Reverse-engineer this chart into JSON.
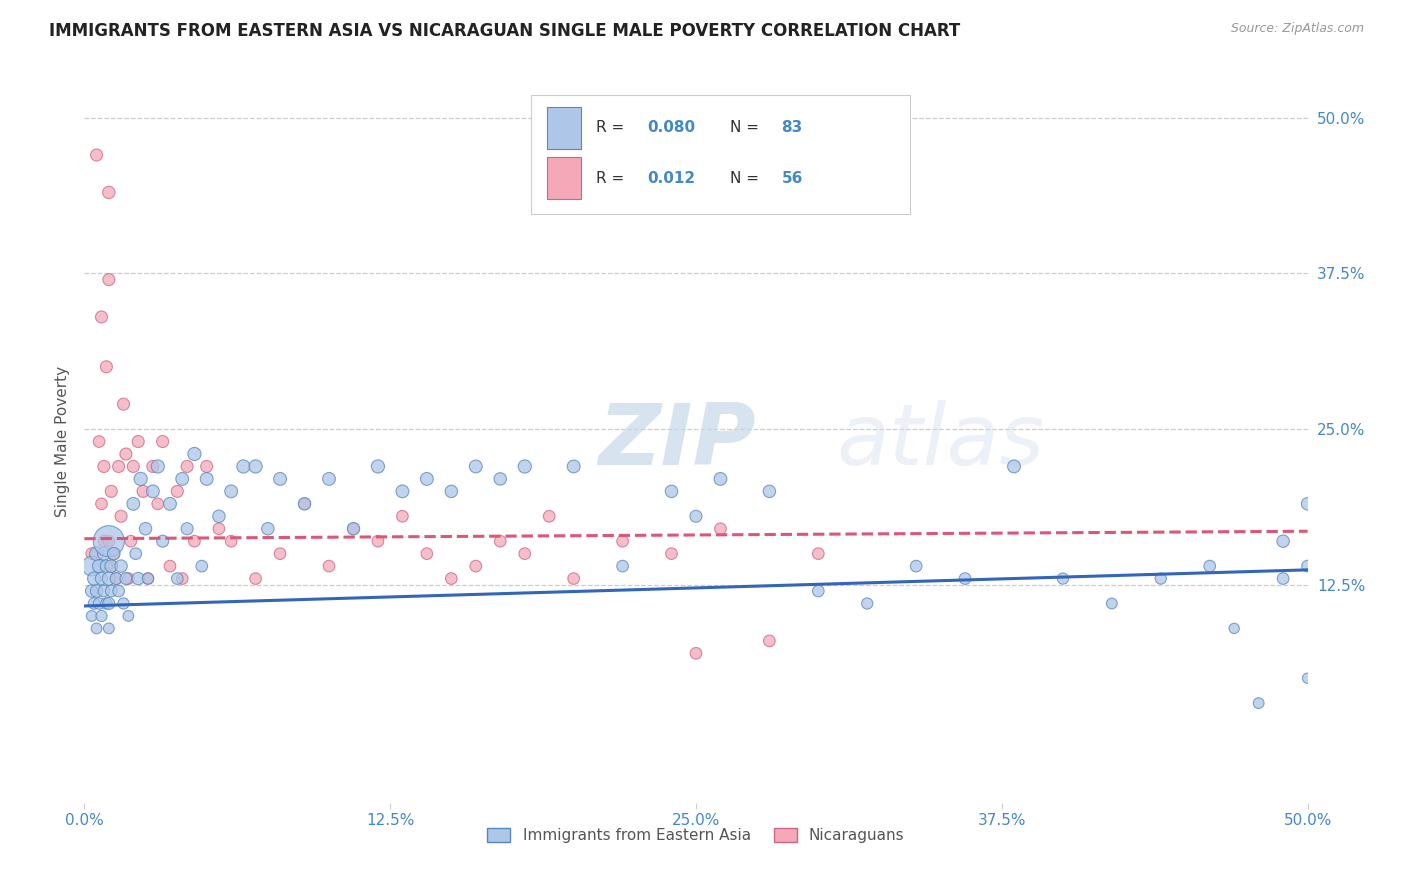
{
  "title": "IMMIGRANTS FROM EASTERN ASIA VS NICARAGUAN SINGLE MALE POVERTY CORRELATION CHART",
  "source_text": "Source: ZipAtlas.com",
  "ylabel": "Single Male Poverty",
  "xlim": [
    0.0,
    0.5
  ],
  "ylim": [
    -0.05,
    0.53
  ],
  "xtick_labels": [
    "0.0%",
    "",
    "12.5%",
    "",
    "25.0%",
    "",
    "37.5%",
    "",
    "50.0%"
  ],
  "xtick_vals": [
    0.0,
    0.0625,
    0.125,
    0.1875,
    0.25,
    0.3125,
    0.375,
    0.4375,
    0.5
  ],
  "xtick_display": [
    "0.0%",
    "12.5%",
    "25.0%",
    "37.5%",
    "50.0%"
  ],
  "xtick_display_vals": [
    0.0,
    0.125,
    0.25,
    0.375,
    0.5
  ],
  "ytick_right_labels": [
    "12.5%",
    "25.0%",
    "37.5%",
    "50.0%"
  ],
  "ytick_right_vals": [
    0.125,
    0.25,
    0.375,
    0.5
  ],
  "hline_vals": [
    0.125,
    0.25,
    0.375,
    0.5
  ],
  "blue_R": "0.080",
  "blue_N": "83",
  "pink_R": "0.012",
  "pink_N": "56",
  "blue_color": "#aec6e8",
  "pink_color": "#f4a8b8",
  "blue_edge_color": "#5588bb",
  "pink_edge_color": "#cc6688",
  "blue_line_color": "#3366bb",
  "pink_line_color": "#dd5577",
  "title_color": "#222222",
  "axis_color": "#4488cc",
  "watermark_zip": "ZIP",
  "watermark_atlas": "atlas",
  "legend_label_blue": "Immigrants from Eastern Asia",
  "legend_label_pink": "Nicaraguans",
  "blue_trend_x0": 0.0,
  "blue_trend_y0": 0.108,
  "blue_trend_x1": 0.5,
  "blue_trend_y1": 0.137,
  "pink_trend_x0": 0.0,
  "pink_trend_y0": 0.162,
  "pink_trend_x1": 0.5,
  "pink_trend_y1": 0.168,
  "blue_scatter_x": [
    0.003,
    0.003,
    0.003,
    0.004,
    0.004,
    0.005,
    0.005,
    0.005,
    0.006,
    0.006,
    0.007,
    0.007,
    0.008,
    0.008,
    0.009,
    0.009,
    0.01,
    0.01,
    0.01,
    0.01,
    0.011,
    0.011,
    0.012,
    0.013,
    0.014,
    0.015,
    0.016,
    0.017,
    0.018,
    0.02,
    0.021,
    0.022,
    0.023,
    0.025,
    0.026,
    0.028,
    0.03,
    0.032,
    0.035,
    0.038,
    0.04,
    0.042,
    0.045,
    0.048,
    0.05,
    0.055,
    0.06,
    0.065,
    0.07,
    0.075,
    0.08,
    0.09,
    0.1,
    0.11,
    0.12,
    0.13,
    0.14,
    0.15,
    0.16,
    0.17,
    0.18,
    0.2,
    0.22,
    0.24,
    0.25,
    0.26,
    0.28,
    0.3,
    0.32,
    0.34,
    0.36,
    0.38,
    0.4,
    0.42,
    0.44,
    0.46,
    0.47,
    0.48,
    0.49,
    0.49,
    0.5,
    0.5,
    0.5
  ],
  "blue_scatter_y": [
    0.14,
    0.12,
    0.1,
    0.13,
    0.11,
    0.15,
    0.12,
    0.09,
    0.14,
    0.11,
    0.13,
    0.1,
    0.15,
    0.12,
    0.14,
    0.11,
    0.16,
    0.13,
    0.11,
    0.09,
    0.14,
    0.12,
    0.15,
    0.13,
    0.12,
    0.14,
    0.11,
    0.13,
    0.1,
    0.19,
    0.15,
    0.13,
    0.21,
    0.17,
    0.13,
    0.2,
    0.22,
    0.16,
    0.19,
    0.13,
    0.21,
    0.17,
    0.23,
    0.14,
    0.21,
    0.18,
    0.2,
    0.22,
    0.22,
    0.17,
    0.21,
    0.19,
    0.21,
    0.17,
    0.22,
    0.2,
    0.21,
    0.2,
    0.22,
    0.21,
    0.22,
    0.22,
    0.14,
    0.2,
    0.18,
    0.21,
    0.2,
    0.12,
    0.11,
    0.14,
    0.13,
    0.22,
    0.13,
    0.11,
    0.13,
    0.14,
    0.09,
    0.03,
    0.13,
    0.16,
    0.05,
    0.14,
    0.19
  ],
  "blue_scatter_size": [
    200,
    80,
    60,
    90,
    70,
    100,
    80,
    60,
    90,
    70,
    80,
    65,
    85,
    70,
    80,
    65,
    500,
    90,
    75,
    60,
    85,
    70,
    80,
    75,
    70,
    80,
    65,
    75,
    60,
    85,
    70,
    80,
    90,
    80,
    65,
    85,
    90,
    75,
    85,
    70,
    85,
    75,
    90,
    70,
    85,
    80,
    85,
    90,
    90,
    80,
    85,
    80,
    85,
    80,
    90,
    85,
    85,
    80,
    85,
    80,
    90,
    85,
    70,
    80,
    75,
    85,
    80,
    70,
    65,
    70,
    70,
    85,
    65,
    60,
    65,
    70,
    55,
    60,
    70,
    80,
    55,
    70,
    80
  ],
  "pink_scatter_x": [
    0.003,
    0.005,
    0.006,
    0.007,
    0.007,
    0.008,
    0.008,
    0.009,
    0.01,
    0.01,
    0.01,
    0.011,
    0.011,
    0.012,
    0.013,
    0.014,
    0.015,
    0.016,
    0.017,
    0.018,
    0.019,
    0.02,
    0.022,
    0.024,
    0.026,
    0.028,
    0.03,
    0.032,
    0.035,
    0.038,
    0.04,
    0.042,
    0.045,
    0.05,
    0.055,
    0.06,
    0.07,
    0.08,
    0.09,
    0.1,
    0.11,
    0.12,
    0.13,
    0.14,
    0.15,
    0.16,
    0.17,
    0.18,
    0.19,
    0.2,
    0.22,
    0.24,
    0.25,
    0.26,
    0.28,
    0.3
  ],
  "pink_scatter_y": [
    0.15,
    0.47,
    0.24,
    0.34,
    0.19,
    0.22,
    0.16,
    0.3,
    0.44,
    0.37,
    0.16,
    0.2,
    0.14,
    0.15,
    0.13,
    0.22,
    0.18,
    0.27,
    0.23,
    0.13,
    0.16,
    0.22,
    0.24,
    0.2,
    0.13,
    0.22,
    0.19,
    0.24,
    0.14,
    0.2,
    0.13,
    0.22,
    0.16,
    0.22,
    0.17,
    0.16,
    0.13,
    0.15,
    0.19,
    0.14,
    0.17,
    0.16,
    0.18,
    0.15,
    0.13,
    0.14,
    0.16,
    0.15,
    0.18,
    0.13,
    0.16,
    0.15,
    0.07,
    0.17,
    0.08,
    0.15
  ],
  "pink_scatter_size": [
    70,
    75,
    70,
    75,
    70,
    75,
    70,
    75,
    80,
    75,
    70,
    75,
    70,
    75,
    70,
    75,
    75,
    75,
    75,
    70,
    70,
    75,
    75,
    75,
    70,
    75,
    70,
    75,
    70,
    75,
    70,
    75,
    70,
    75,
    70,
    70,
    70,
    70,
    70,
    70,
    70,
    70,
    70,
    70,
    70,
    70,
    70,
    70,
    70,
    70,
    70,
    70,
    70,
    70,
    70,
    70
  ]
}
